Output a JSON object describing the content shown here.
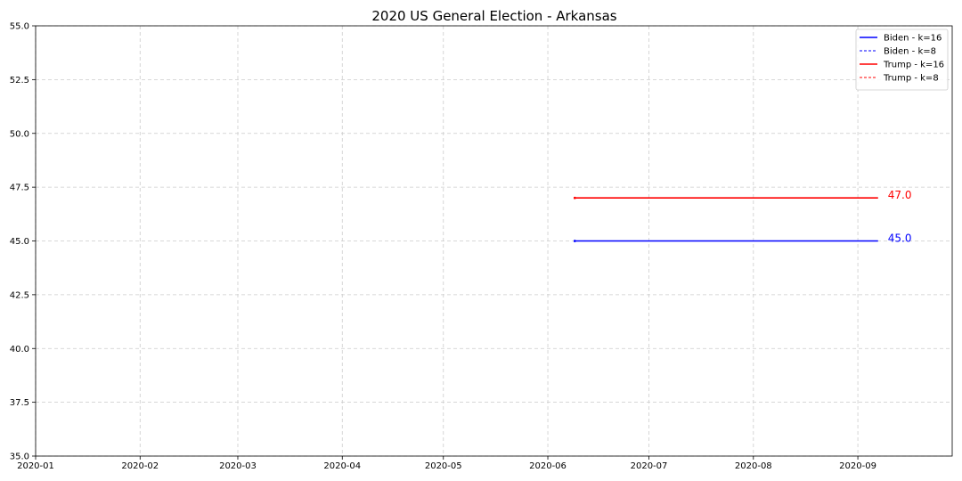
{
  "chart_data": {
    "type": "line",
    "title": "2020 US General Election - Arkansas",
    "xlabel": "",
    "ylabel": "",
    "x_axis": {
      "type": "date",
      "range": [
        "2020-01-01",
        "2020-09-29"
      ],
      "ticks": [
        "2020-01-01",
        "2020-02-01",
        "2020-03-01",
        "2020-04-01",
        "2020-05-01",
        "2020-06-01",
        "2020-07-01",
        "2020-08-01",
        "2020-09-01"
      ],
      "tick_labels": [
        "2020-01",
        "2020-02",
        "2020-03",
        "2020-04",
        "2020-05",
        "2020-06",
        "2020-07",
        "2020-08",
        "2020-09"
      ]
    },
    "y_axis": {
      "range": [
        35.0,
        55.0
      ],
      "ticks": [
        35.0,
        37.5,
        40.0,
        42.5,
        45.0,
        47.5,
        50.0,
        52.5,
        55.0
      ],
      "tick_labels": [
        "35.0",
        "37.5",
        "40.0",
        "42.5",
        "45.0",
        "47.5",
        "50.0",
        "52.5",
        "55.0"
      ]
    },
    "grid": true,
    "legend_position": "top-right",
    "series": [
      {
        "name": "Biden - k=16",
        "color": "#0000ff",
        "style": "solid",
        "x": [
          "2020-06-09",
          "2020-09-07"
        ],
        "y": [
          45.0,
          45.0
        ]
      },
      {
        "name": "Biden - k=8",
        "color": "#0000ff",
        "style": "dashed",
        "x": [
          "2020-06-09",
          "2020-09-07"
        ],
        "y": [
          45.0,
          45.0
        ]
      },
      {
        "name": "Trump - k=16",
        "color": "#ff0000",
        "style": "solid",
        "x": [
          "2020-06-09",
          "2020-09-07"
        ],
        "y": [
          47.0,
          47.0
        ]
      },
      {
        "name": "Trump - k=8",
        "color": "#ff0000",
        "style": "dashed",
        "x": [
          "2020-06-09",
          "2020-09-07"
        ],
        "y": [
          47.0,
          47.0
        ]
      }
    ],
    "annotations": [
      {
        "text": "47.0",
        "color": "#ff0000",
        "x": "2020-09-07",
        "y": 47.0
      },
      {
        "text": "45.0",
        "color": "#0000ff",
        "x": "2020-09-07",
        "y": 45.0
      }
    ]
  }
}
